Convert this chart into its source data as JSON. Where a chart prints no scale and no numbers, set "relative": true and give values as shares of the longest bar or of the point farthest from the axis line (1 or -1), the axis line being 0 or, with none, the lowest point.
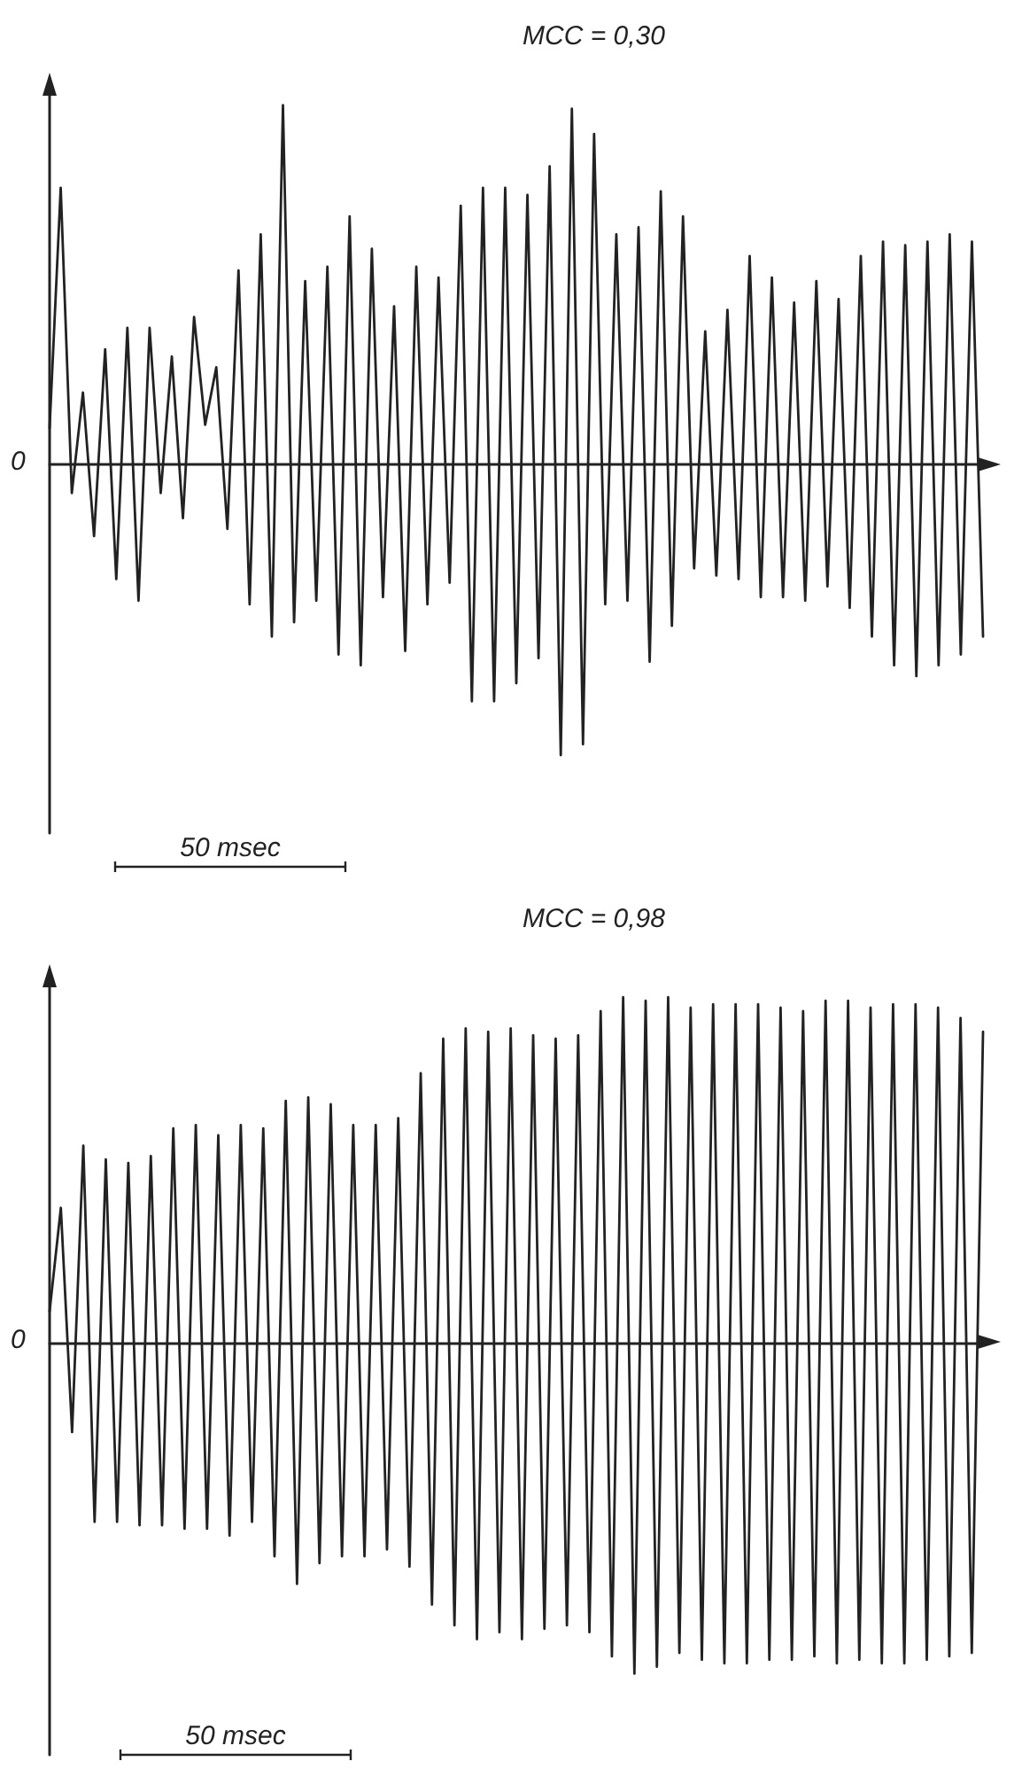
{
  "chart_data": [
    {
      "type": "line",
      "title": "MCC = 0,30",
      "relative": true,
      "marker": "none",
      "line_style": "solid",
      "annotations": [
        "0",
        "50 msec"
      ],
      "categories": [
        null,
        null,
        null,
        null,
        null,
        null,
        null,
        null,
        null,
        null,
        null,
        null,
        null,
        null,
        null,
        null,
        null,
        null,
        null,
        null,
        null,
        null,
        null,
        null,
        null,
        null,
        null,
        null,
        null,
        null,
        null,
        null,
        null,
        null,
        null,
        null,
        null,
        null,
        null,
        null,
        null,
        null,
        null,
        null,
        null,
        null,
        null,
        null,
        null,
        null,
        null,
        null,
        null,
        null,
        null,
        null,
        null,
        null,
        null,
        null,
        null,
        null,
        null,
        null,
        null,
        null,
        null,
        null,
        null,
        null,
        null,
        null,
        null,
        null,
        null,
        null,
        null,
        null,
        null,
        null,
        null,
        null,
        null,
        null,
        null
      ],
      "series": [
        {
          "color": "#222222",
          "values": [
            0.1,
            0.77,
            -0.08,
            0.2,
            -0.2,
            0.32,
            -0.32,
            0.38,
            -0.38,
            0.38,
            -0.08,
            0.3,
            -0.15,
            0.41,
            0.11,
            0.27,
            -0.18,
            0.54,
            -0.39,
            0.64,
            -0.48,
            1.0,
            -0.44,
            0.51,
            -0.38,
            0.55,
            -0.53,
            0.69,
            -0.56,
            0.6,
            -0.37,
            0.44,
            -0.52,
            0.55,
            -0.39,
            0.52,
            -0.33,
            0.72,
            -0.66,
            0.77,
            -0.66,
            0.77,
            -0.61,
            0.75,
            -0.54,
            0.83,
            -0.81,
            0.99,
            -0.78,
            0.92,
            -0.39,
            0.64,
            -0.38,
            0.66,
            -0.55,
            0.76,
            -0.45,
            0.69,
            -0.29,
            0.37,
            -0.31,
            0.43,
            -0.32,
            0.58,
            -0.37,
            0.52,
            -0.37,
            0.45,
            -0.38,
            0.51,
            -0.34,
            0.46,
            -0.4,
            0.58,
            -0.48,
            0.62,
            -0.56,
            0.61,
            -0.59,
            0.62,
            -0.56,
            0.64,
            -0.53,
            0.62,
            -0.48
          ]
        }
      ]
    },
    {
      "type": "line",
      "title": "MCC = 0,98",
      "relative": true,
      "marker": "none",
      "line_style": "solid",
      "annotations": [
        "0",
        "50 msec"
      ],
      "categories": [
        null,
        null,
        null,
        null,
        null,
        null,
        null,
        null,
        null,
        null,
        null,
        null,
        null,
        null,
        null,
        null,
        null,
        null,
        null,
        null,
        null,
        null,
        null,
        null,
        null,
        null,
        null,
        null,
        null,
        null,
        null,
        null,
        null,
        null,
        null,
        null,
        null,
        null,
        null,
        null,
        null,
        null,
        null,
        null,
        null,
        null,
        null,
        null,
        null,
        null,
        null,
        null,
        null,
        null,
        null,
        null,
        null,
        null,
        null,
        null,
        null,
        null,
        null,
        null,
        null,
        null,
        null,
        null,
        null,
        null,
        null,
        null,
        null,
        null,
        null,
        null,
        null,
        null,
        null,
        null,
        null,
        null,
        null,
        null
      ],
      "series": [
        {
          "color": "#222222",
          "values": [
            0.09,
            0.39,
            -0.26,
            0.57,
            -0.52,
            0.53,
            -0.52,
            0.52,
            -0.53,
            0.54,
            -0.53,
            0.62,
            -0.54,
            0.63,
            -0.54,
            0.6,
            -0.56,
            0.63,
            -0.52,
            0.62,
            -0.62,
            0.7,
            -0.7,
            0.71,
            -0.64,
            0.69,
            -0.62,
            0.63,
            -0.62,
            0.63,
            -0.6,
            0.65,
            -0.65,
            0.78,
            -0.76,
            0.88,
            -0.82,
            0.91,
            -0.86,
            0.9,
            -0.84,
            0.91,
            -0.86,
            0.89,
            -0.83,
            0.88,
            -0.82,
            0.89,
            -0.84,
            0.96,
            -0.91,
            1.0,
            -0.96,
            0.99,
            -0.94,
            1.0,
            -0.9,
            0.97,
            -0.92,
            0.98,
            -0.93,
            0.98,
            -0.93,
            0.98,
            -0.92,
            0.97,
            -0.92,
            0.96,
            -0.91,
            0.99,
            -0.93,
            0.99,
            -0.92,
            0.97,
            -0.93,
            0.98,
            -0.93,
            0.98,
            -0.92,
            0.97,
            -0.91,
            0.94,
            -0.9,
            0.9
          ]
        }
      ]
    }
  ]
}
